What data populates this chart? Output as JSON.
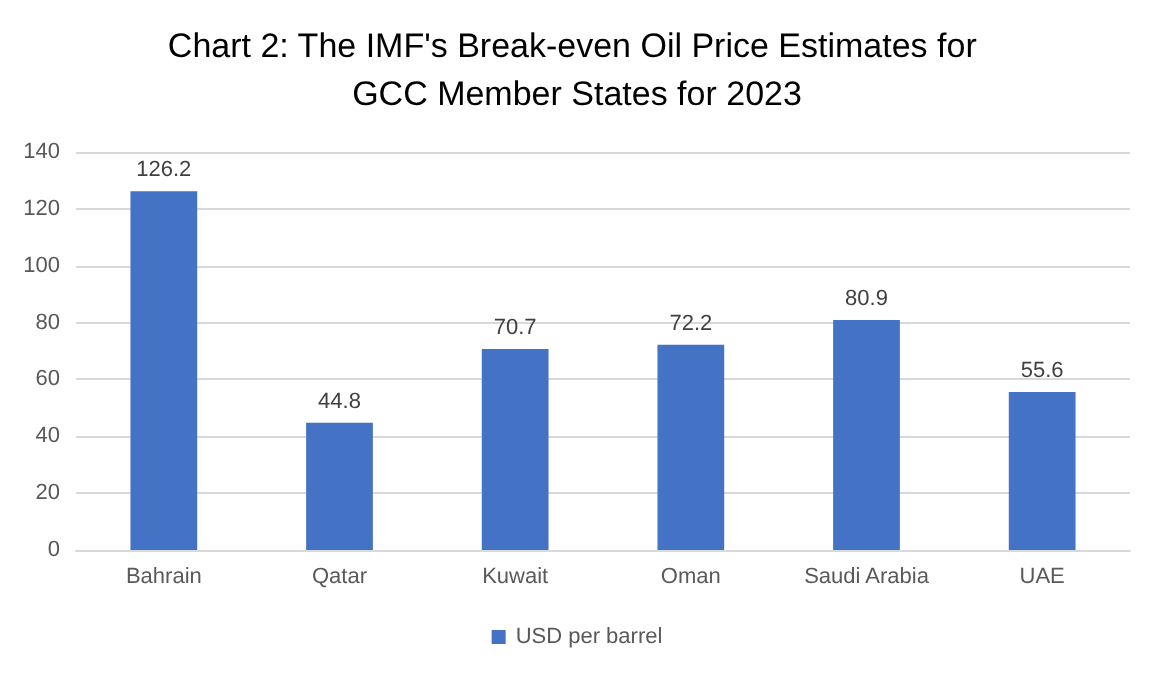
{
  "chart_data": {
    "type": "bar",
    "title": "Chart 2: The IMF's Break-even Oil Price Estimates for GCC Member States for 2023",
    "categories": [
      "Bahrain",
      "Qatar",
      "Kuwait",
      "Oman",
      "Saudi Arabia",
      "UAE"
    ],
    "series": [
      {
        "name": "USD per barrel",
        "color": "#4472c4",
        "values": [
          126.2,
          44.8,
          70.7,
          72.2,
          80.9,
          55.6
        ]
      }
    ],
    "ylim": [
      0,
      140
    ],
    "yticks": [
      0,
      20,
      40,
      60,
      80,
      100,
      120,
      140
    ],
    "grid": "y",
    "legend": "bottom",
    "data_labels": true
  }
}
